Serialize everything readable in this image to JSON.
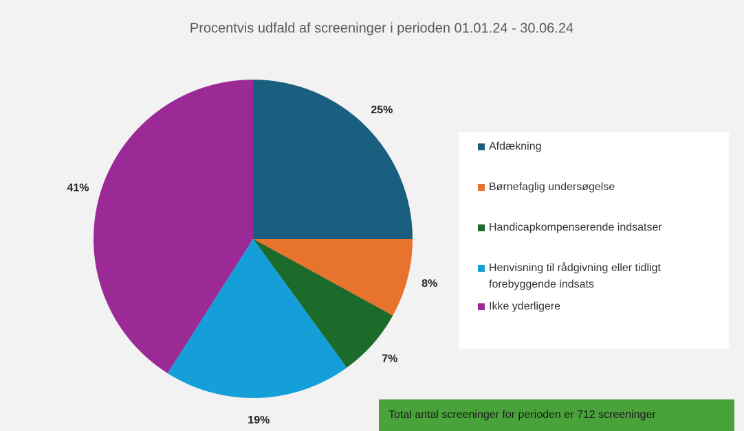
{
  "chart_data": {
    "type": "pie",
    "title": "Procentvis udfald af screeninger i perioden 01.01.24 - 30.06.24",
    "categories": [
      "Afdækning",
      "Børnefaglig undersøgelse",
      "Handicapkompenserende indsatser",
      "Henvisning til rådgivning eller tidligt forebyggende indsats",
      "Ikke yderligere"
    ],
    "values": [
      25,
      8,
      7,
      19,
      41
    ],
    "value_labels": [
      "25%",
      "8%",
      "7%",
      "19%",
      "41%"
    ],
    "colors": [
      "#1a5e80",
      "#e8732f",
      "#1d6b2a",
      "#159fd8",
      "#9b2a96"
    ],
    "legend": "right",
    "annotation": "Total antal screeninger for perioden er 712 screeninger"
  }
}
